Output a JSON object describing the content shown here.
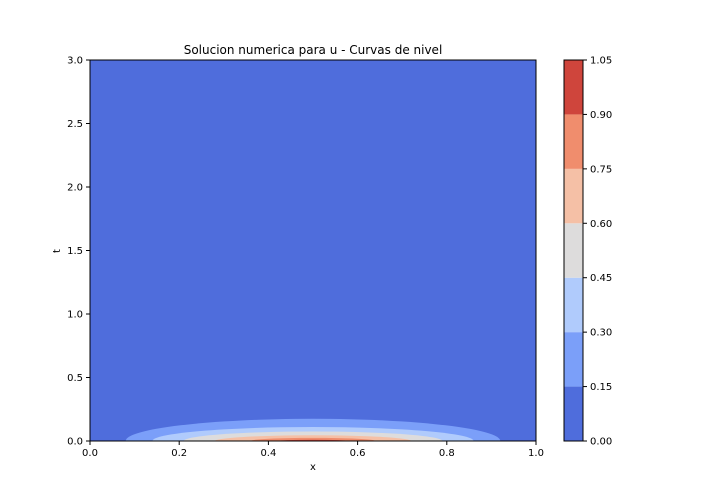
{
  "chart_data": {
    "type": "contourf",
    "title": "Solucion numerica para u - Curvas de nivel",
    "xlabel": "x",
    "ylabel": "t",
    "xlim": [
      0.0,
      1.0
    ],
    "ylim": [
      0.0,
      3.0
    ],
    "x_ticks": [
      "0.0",
      "0.2",
      "0.4",
      "0.6",
      "0.8",
      "1.0"
    ],
    "y_ticks": [
      "0.0",
      "0.5",
      "1.0",
      "1.5",
      "2.0",
      "2.5",
      "3.0"
    ],
    "colorbar": {
      "levels": [
        0.0,
        0.15,
        0.3,
        0.45,
        0.6,
        0.75,
        0.9,
        1.05
      ],
      "tick_labels": [
        "0.00",
        "0.15",
        "0.30",
        "0.45",
        "0.60",
        "0.75",
        "0.90",
        "1.05"
      ],
      "colors": [
        "#4f6ddc",
        "#7b9ff9",
        "#b0cbfc",
        "#dddcdc",
        "#f5c0a6",
        "#f08d6d",
        "#cf453c"
      ]
    },
    "contour_regions": [
      {
        "level_min": 0.15,
        "half_width_x": 0.42,
        "t_max": 0.175
      },
      {
        "level_min": 0.3,
        "half_width_x": 0.36,
        "t_max": 0.11
      },
      {
        "level_min": 0.45,
        "half_width_x": 0.29,
        "t_max": 0.075
      },
      {
        "level_min": 0.6,
        "half_width_x": 0.22,
        "t_max": 0.045
      },
      {
        "level_min": 0.75,
        "half_width_x": 0.14,
        "t_max": 0.025
      },
      {
        "level_min": 0.9,
        "half_width_x": 0.08,
        "t_max": 0.01
      }
    ],
    "center_x": 0.5
  }
}
